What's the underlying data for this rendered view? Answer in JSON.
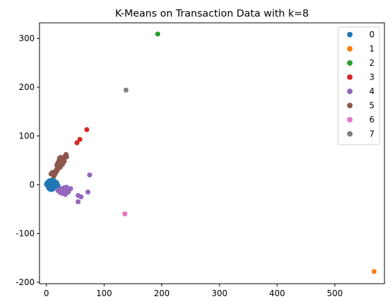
{
  "chart_data": {
    "type": "scatter",
    "title": "K-Means on Transaction Data with k=8",
    "xlabel": "",
    "ylabel": "",
    "xlim": [
      -12,
      586
    ],
    "ylim": [
      -203,
      332
    ],
    "xticks": [
      0,
      100,
      200,
      300,
      400,
      500
    ],
    "yticks": [
      -200,
      -100,
      0,
      100,
      200,
      300
    ],
    "grid": false,
    "legend_position": "top-right",
    "series": [
      {
        "name": "0",
        "color": "#1f77b4",
        "points": [
          [
            1,
            0
          ],
          [
            2,
            1
          ],
          [
            3,
            -1
          ],
          [
            2,
            3
          ],
          [
            4,
            2
          ],
          [
            5,
            -2
          ],
          [
            3,
            5
          ],
          [
            6,
            0
          ],
          [
            7,
            3
          ],
          [
            8,
            -3
          ],
          [
            4,
            -4
          ],
          [
            6,
            6
          ],
          [
            9,
            1
          ],
          [
            10,
            -1
          ],
          [
            11,
            4
          ],
          [
            12,
            -5
          ],
          [
            5,
            8
          ],
          [
            8,
            8
          ],
          [
            13,
            2
          ],
          [
            14,
            -2
          ],
          [
            15,
            0
          ],
          [
            16,
            3
          ],
          [
            9,
            -8
          ],
          [
            11,
            -9
          ],
          [
            7,
            -6
          ],
          [
            3,
            -3
          ],
          [
            1,
            2
          ],
          [
            2,
            -2
          ],
          [
            10,
            6
          ],
          [
            12,
            7
          ],
          [
            14,
            5
          ],
          [
            17,
            1
          ],
          [
            18,
            -1
          ],
          [
            16,
            -3
          ],
          [
            13,
            -6
          ],
          [
            6,
            -9
          ],
          [
            4,
            -7
          ],
          [
            8,
            -10
          ],
          [
            2,
            5
          ],
          [
            0,
            1
          ],
          [
            15,
            6
          ],
          [
            19,
            0
          ],
          [
            20,
            -2
          ],
          [
            18,
            4
          ],
          [
            12,
            10
          ],
          [
            10,
            10
          ]
        ]
      },
      {
        "name": "1",
        "color": "#ff7f0e",
        "points": [
          [
            568,
            -178
          ]
        ]
      },
      {
        "name": "2",
        "color": "#2ca02c",
        "points": [
          [
            193,
            309
          ]
        ]
      },
      {
        "name": "3",
        "color": "#d62728",
        "points": [
          [
            53,
            86
          ],
          [
            58,
            93
          ],
          [
            70,
            113
          ]
        ]
      },
      {
        "name": "4",
        "color": "#9467bd",
        "points": [
          [
            75,
            20
          ],
          [
            72,
            -15
          ],
          [
            60,
            -25
          ],
          [
            55,
            -35
          ],
          [
            55,
            -22
          ],
          [
            30,
            -10
          ],
          [
            25,
            -8
          ],
          [
            22,
            -12
          ],
          [
            35,
            -5
          ],
          [
            38,
            -15
          ],
          [
            40,
            -10
          ],
          [
            28,
            -18
          ],
          [
            33,
            -20
          ],
          [
            20,
            -12
          ],
          [
            24,
            -16
          ],
          [
            42,
            -8
          ],
          [
            31,
            -6
          ],
          [
            26,
            -14
          ],
          [
            36,
            -12
          ],
          [
            29,
            -9
          ]
        ]
      },
      {
        "name": "5",
        "color": "#8c564b",
        "points": [
          [
            8,
            22
          ],
          [
            10,
            25
          ],
          [
            12,
            20
          ],
          [
            14,
            24
          ],
          [
            16,
            28
          ],
          [
            18,
            32
          ],
          [
            20,
            38
          ],
          [
            22,
            42
          ],
          [
            24,
            46
          ],
          [
            26,
            50
          ],
          [
            28,
            55
          ],
          [
            30,
            52
          ],
          [
            32,
            58
          ],
          [
            34,
            62
          ],
          [
            20,
            45
          ],
          [
            18,
            40
          ],
          [
            22,
            50
          ],
          [
            24,
            36
          ],
          [
            26,
            40
          ],
          [
            28,
            42
          ],
          [
            15,
            22
          ],
          [
            17,
            26
          ],
          [
            19,
            30
          ],
          [
            21,
            34
          ],
          [
            23,
            55
          ],
          [
            25,
            56
          ],
          [
            35,
            57
          ],
          [
            31,
            48
          ],
          [
            13,
            18
          ],
          [
            11,
            24
          ]
        ]
      },
      {
        "name": "6",
        "color": "#e377c2",
        "points": [
          [
            136,
            -60
          ]
        ]
      },
      {
        "name": "7",
        "color": "#7f7f7f",
        "points": [
          [
            138,
            194
          ]
        ]
      }
    ]
  }
}
